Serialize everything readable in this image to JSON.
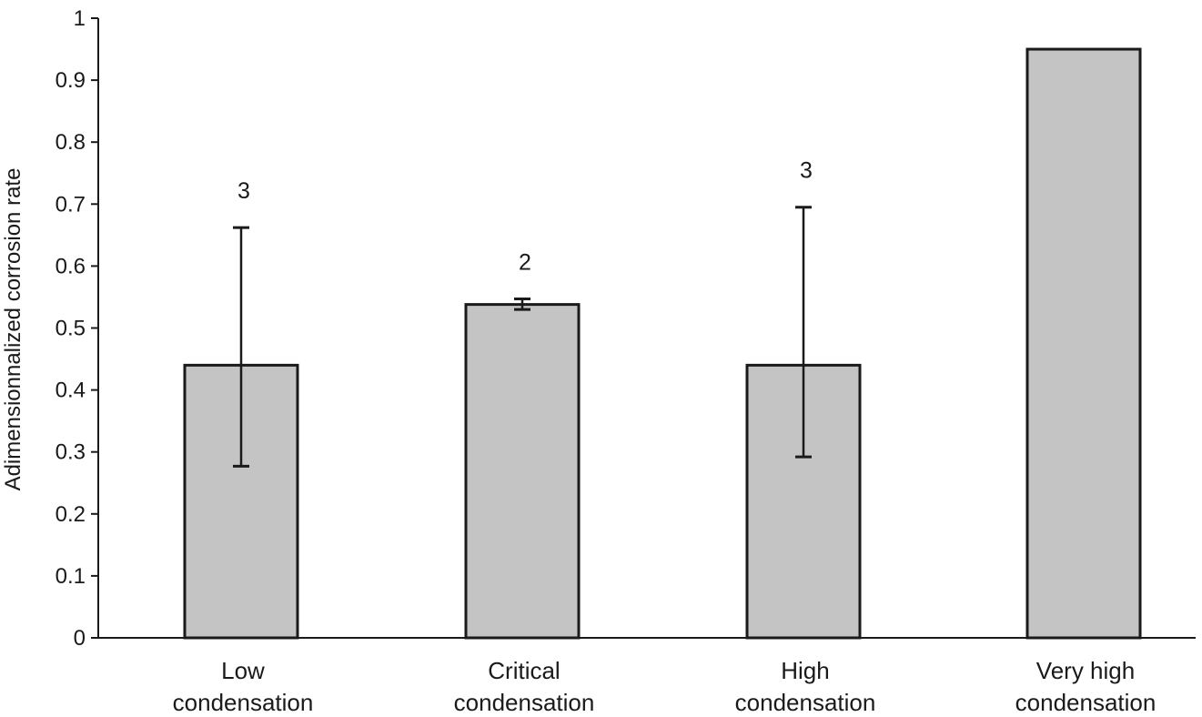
{
  "chart_data": {
    "type": "bar",
    "title": "",
    "xlabel": "",
    "ylabel": "Adimensionnalized corrosion rate",
    "ylim": [
      0,
      1
    ],
    "yticks": [
      "0",
      "0.1",
      "0.2",
      "0.3",
      "0.4",
      "0.5",
      "0.6",
      "0.7",
      "0.8",
      "0.9",
      "1"
    ],
    "grid": false,
    "legend": "none",
    "categories": [
      [
        "Low",
        "condensation"
      ],
      [
        "Critical",
        "condensation"
      ],
      [
        "High",
        "condensation"
      ],
      [
        "Very high",
        "condensation"
      ]
    ],
    "values": [
      0.44,
      0.538,
      0.44,
      0.95
    ],
    "error_bars": [
      {
        "low": 0.277,
        "high": 0.662
      },
      {
        "low": 0.53,
        "high": 0.547
      },
      {
        "low": 0.292,
        "high": 0.695
      },
      null
    ],
    "annotations": [
      "3",
      "2",
      "3",
      ""
    ],
    "colors": {
      "bar_fill": "#c4c4c4",
      "bar_stroke": "#1a1a1a",
      "axis": "#1a1a1a"
    }
  }
}
